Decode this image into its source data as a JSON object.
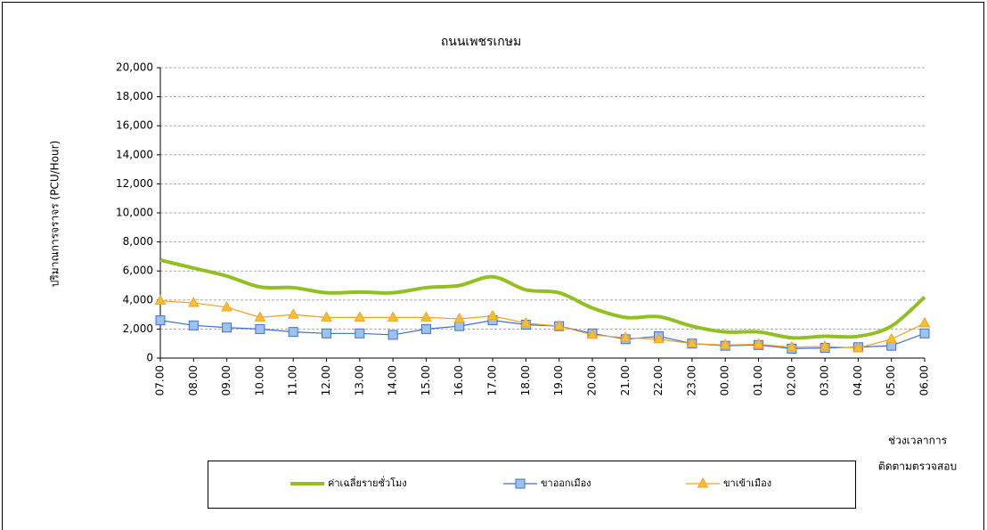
{
  "chart_data": {
    "type": "line",
    "title": "ถนนเพชรเกษม",
    "y_label": "ปริมาณการจราจร (PCU/Hour)",
    "x_label": [
      "ช่วงเวลาการ",
      "ติดตามตรวจสอบ"
    ],
    "categories": [
      "07.00",
      "08.00",
      "09.00",
      "10.00",
      "11.00",
      "12.00",
      "13.00",
      "14.00",
      "15.00",
      "16.00",
      "17.00",
      "18.00",
      "19.00",
      "20.00",
      "21.00",
      "22.00",
      "23.00",
      "00.00",
      "01.00",
      "02.00",
      "03.00",
      "04.00",
      "05.00",
      "06.00"
    ],
    "series": [
      {
        "name": "ค่าเฉลี่ยรายชั่วโมง",
        "color": "#92c020",
        "smooth": true,
        "values": [
          6750,
          6200,
          5650,
          4900,
          4850,
          4500,
          4550,
          4500,
          4850,
          5000,
          5600,
          4700,
          4500,
          3450,
          2800,
          2850,
          2200,
          1800,
          1800,
          1400,
          1500,
          1500,
          2200,
          4200
        ]
      },
      {
        "name": "ขาออกเมือง",
        "color": "#3f6fd0",
        "marker": "square",
        "marker_fill": "#9cc3f0",
        "values": [
          2600,
          2250,
          2100,
          2000,
          1800,
          1700,
          1700,
          1600,
          2000,
          2200,
          2600,
          2300,
          2200,
          1700,
          1300,
          1500,
          1000,
          850,
          900,
          650,
          700,
          750,
          850,
          1700
        ]
      },
      {
        "name": "ขาเข้าเมือง",
        "color": "#f5a020",
        "marker": "triangle",
        "marker_fill": "#f7c030",
        "values": [
          3950,
          3800,
          3500,
          2800,
          3000,
          2800,
          2800,
          2800,
          2800,
          2700,
          2900,
          2400,
          2200,
          1600,
          1400,
          1300,
          1000,
          900,
          950,
          750,
          800,
          700,
          1300,
          2400
        ]
      }
    ],
    "ylim": [
      0,
      20000
    ],
    "yticks": [
      0,
      {
        "value": 2000,
        "label": "2,000"
      },
      {
        "value": 4000,
        "label": "4,000"
      },
      {
        "value": 6000,
        "label": "6,000"
      },
      {
        "value": 8000,
        "label": "8,000"
      },
      {
        "value": 10000,
        "label": "10,000"
      },
      {
        "value": 12000,
        "label": "12,000"
      },
      {
        "value": 14000,
        "label": "14,000"
      },
      {
        "value": 16000,
        "label": "16,000"
      },
      {
        "value": 18000,
        "label": "18,000"
      },
      {
        "value": 20000,
        "label": "20,000"
      }
    ],
    "grid": true
  }
}
